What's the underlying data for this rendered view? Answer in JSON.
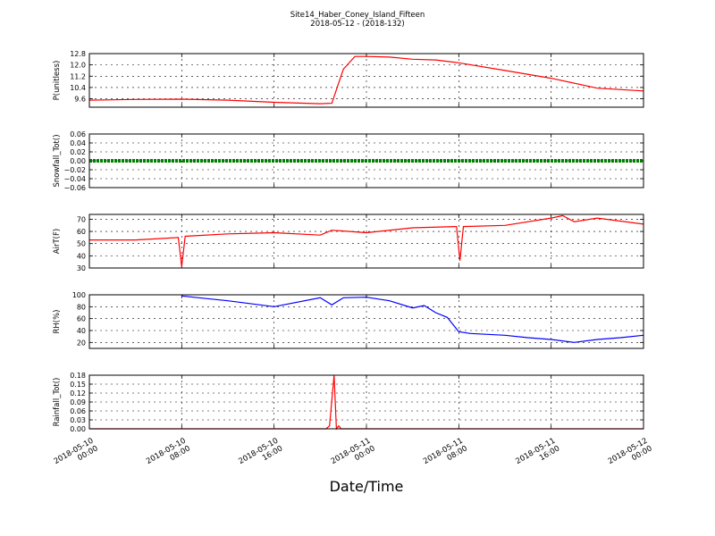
{
  "title": "Site14_Haber_Coney_Island_Fifteen",
  "subtitle": "2018-05-12 - (2018-132)",
  "xlabel": "Date/Time",
  "x_tick_labels": [
    [
      "2018-05-10",
      "00:00"
    ],
    [
      "2018-05-10",
      "08:00"
    ],
    [
      "2018-05-10",
      "16:00"
    ],
    [
      "2018-05-11",
      "00:00"
    ],
    [
      "2018-05-11",
      "08:00"
    ],
    [
      "2018-05-11",
      "16:00"
    ],
    [
      "2018-05-12",
      "00:00"
    ]
  ],
  "chart_data": [
    {
      "type": "line",
      "ylabel": "P(unitless)",
      "ylim": [
        9.0,
        12.8
      ],
      "yticks": [
        "12.8",
        "12.0",
        "11.2",
        "10.4",
        "9.6"
      ],
      "grid": true,
      "color": "#ff0000",
      "x_hours": [
        0,
        4,
        8,
        12,
        16,
        20,
        21,
        22,
        23,
        24,
        26,
        28,
        30,
        32,
        36,
        40,
        44,
        48
      ],
      "values": [
        9.5,
        9.55,
        9.57,
        9.5,
        9.35,
        9.25,
        9.28,
        11.7,
        12.6,
        12.6,
        12.55,
        12.4,
        12.35,
        12.15,
        11.6,
        11.05,
        10.35,
        10.15
      ]
    },
    {
      "type": "line",
      "ylabel": "Snowfall_Tot()",
      "ylim": [
        -0.06,
        0.06
      ],
      "yticks": [
        "0.06",
        "0.04",
        "0.02",
        "0.00",
        "−0.02",
        "−0.04",
        "−0.06"
      ],
      "grid": true,
      "color": "#008000",
      "x_hours": [
        0,
        48
      ],
      "values": [
        0.0,
        0.0
      ]
    },
    {
      "type": "line",
      "ylabel": "AirT(F)",
      "ylim": [
        30,
        74
      ],
      "yticks": [
        "70",
        "60",
        "50",
        "40",
        "30"
      ],
      "grid": true,
      "color": "#ff0000",
      "x_hours": [
        0,
        4,
        7.7,
        8,
        8.3,
        12,
        16,
        20,
        21,
        24,
        28,
        31.8,
        32.1,
        32.4,
        36,
        40,
        41,
        42,
        44,
        48
      ],
      "values": [
        53,
        53,
        55,
        31,
        56,
        58,
        59,
        57,
        61,
        59,
        63,
        64,
        36,
        64,
        65,
        71,
        73,
        68,
        71,
        66
      ]
    },
    {
      "type": "line",
      "ylabel": "RH(%)",
      "ylim": [
        10,
        100
      ],
      "yticks": [
        "100",
        "80",
        "60",
        "40",
        "20"
      ],
      "grid": true,
      "color": "#0000ff",
      "x_hours": [
        8,
        12,
        16,
        20,
        21,
        22,
        24,
        26,
        28,
        29,
        30,
        31,
        32,
        33,
        36,
        38,
        40,
        42,
        44,
        46,
        48
      ],
      "values": [
        98,
        90,
        80,
        95,
        83,
        95,
        96,
        90,
        78,
        82,
        70,
        62,
        38,
        35,
        32,
        28,
        25,
        20,
        25,
        28,
        32
      ]
    },
    {
      "type": "line",
      "ylabel": "Rainfall_Tot()",
      "ylim": [
        0,
        0.18
      ],
      "yticks": [
        "0.18",
        "0.15",
        "0.12",
        "0.09",
        "0.06",
        "0.03",
        "0.00"
      ],
      "grid": true,
      "color": "#ff0000",
      "x_hours": [
        0,
        20.5,
        20.8,
        21.2,
        21.4,
        21.6,
        21.8,
        22.2,
        48
      ],
      "values": [
        0,
        0,
        0.01,
        0.18,
        0.0,
        0.01,
        0.0,
        0.0,
        0
      ]
    }
  ]
}
